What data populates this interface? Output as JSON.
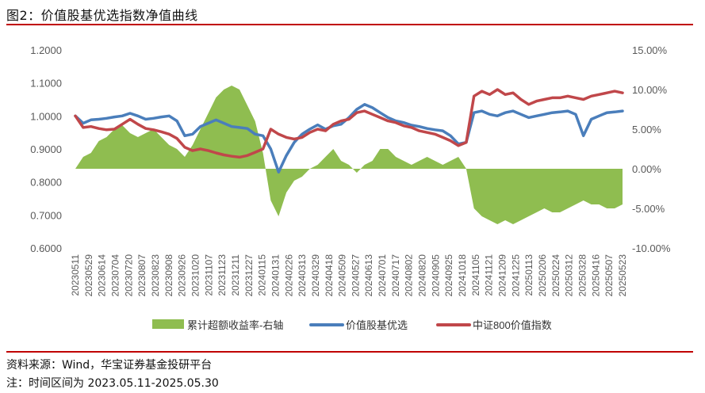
{
  "figure": {
    "title": "图2：价值股基优选指数净值曲线",
    "source": "资料来源：Wind，华宝证券基金投研平台",
    "note": "注：时间区间为 2023.05.11-2025.05.30"
  },
  "colors": {
    "excess": "#8fbd50",
    "fund": "#4a7ebb",
    "index": "#c0474a",
    "rule": "#c00000",
    "axis_text": "#595959"
  },
  "chart_data": {
    "type": "line",
    "grid": false,
    "legend_position": "bottom",
    "y_left": {
      "min": 0.6,
      "max": 1.2,
      "ticks": [
        "0.6000",
        "0.7000",
        "0.8000",
        "0.9000",
        "1.0000",
        "1.1000",
        "1.2000"
      ]
    },
    "y_right": {
      "min": -10,
      "max": 15,
      "ticks": [
        "-10.00%",
        "-5.00%",
        "0.00%",
        "5.00%",
        "10.00%",
        "15.00%"
      ]
    },
    "x_ticks": [
      "20230511",
      "20230529",
      "20230614",
      "20230704",
      "20230720",
      "20230807",
      "20230823",
      "20230908",
      "20230926",
      "20231020",
      "20231107",
      "20231123",
      "20231211",
      "20231227",
      "20240115",
      "20240131",
      "20240226",
      "20240313",
      "20240329",
      "20240418",
      "20240509",
      "20240527",
      "20240613",
      "20240701",
      "20240717",
      "20240802",
      "20240820",
      "20240905",
      "20240925",
      "20241018",
      "20241105",
      "20241121",
      "20241209",
      "20241225",
      "20250113",
      "20250206",
      "20250224",
      "20250312",
      "20250328",
      "20250416",
      "20250507",
      "20250523"
    ],
    "series": [
      {
        "name": "累计超额收益率-右轴",
        "kind": "area",
        "axis": "right",
        "values": [
          0,
          1.5,
          2,
          3.5,
          4,
          5,
          5.5,
          4.5,
          4,
          4.5,
          5,
          4,
          3,
          2.5,
          1.5,
          3,
          5,
          7,
          9,
          10,
          10.5,
          10,
          8,
          6,
          2,
          -4,
          -6,
          -3,
          -1.5,
          -1,
          0,
          0.5,
          1.5,
          2.5,
          1,
          0.5,
          -0.5,
          0.5,
          1,
          2.5,
          2.5,
          1.5,
          1,
          0.5,
          1,
          1.5,
          1,
          0.5,
          1,
          1.5,
          0,
          -5,
          -6,
          -6.5,
          -7,
          -6.5,
          -7,
          -6.5,
          -6,
          -5.5,
          -5,
          -5.5,
          -5.5,
          -5,
          -4.5,
          -4,
          -4.5,
          -4.5,
          -5,
          -5,
          -4.5
        ]
      },
      {
        "name": "价值股基优选",
        "kind": "line",
        "axis": "left",
        "values": [
          1.0,
          0.978,
          0.988,
          0.99,
          0.993,
          0.997,
          1.0,
          1.008,
          1.0,
          0.99,
          0.993,
          0.997,
          1.0,
          0.985,
          0.94,
          0.945,
          0.968,
          0.978,
          0.988,
          0.978,
          0.968,
          0.965,
          0.962,
          0.945,
          0.94,
          0.9,
          0.83,
          0.88,
          0.92,
          0.945,
          0.96,
          0.973,
          0.96,
          0.97,
          0.975,
          0.995,
          1.02,
          1.035,
          1.025,
          1.01,
          0.995,
          0.985,
          0.98,
          0.972,
          0.968,
          0.962,
          0.958,
          0.955,
          0.94,
          0.915,
          0.92,
          1.01,
          1.015,
          1.005,
          1.0,
          1.01,
          1.015,
          1.005,
          0.995,
          1.0,
          1.005,
          1.01,
          1.012,
          1.015,
          1.005,
          0.94,
          0.99,
          1.0,
          1.01,
          1.012,
          1.015
        ]
      },
      {
        "name": "中证800价值指数",
        "kind": "line",
        "axis": "left",
        "values": [
          1.0,
          0.965,
          0.968,
          0.962,
          0.958,
          0.96,
          0.975,
          0.99,
          0.975,
          0.962,
          0.958,
          0.952,
          0.945,
          0.932,
          0.905,
          0.895,
          0.9,
          0.895,
          0.888,
          0.882,
          0.878,
          0.875,
          0.88,
          0.89,
          0.9,
          0.96,
          0.945,
          0.935,
          0.93,
          0.935,
          0.95,
          0.96,
          0.955,
          0.975,
          0.985,
          0.99,
          1.01,
          1.015,
          1.005,
          0.995,
          0.985,
          0.98,
          0.97,
          0.965,
          0.955,
          0.95,
          0.945,
          0.935,
          0.925,
          0.91,
          0.92,
          1.06,
          1.075,
          1.065,
          1.08,
          1.065,
          1.07,
          1.05,
          1.035,
          1.045,
          1.05,
          1.055,
          1.055,
          1.06,
          1.055,
          1.05,
          1.06,
          1.065,
          1.07,
          1.075,
          1.07
        ]
      }
    ]
  }
}
